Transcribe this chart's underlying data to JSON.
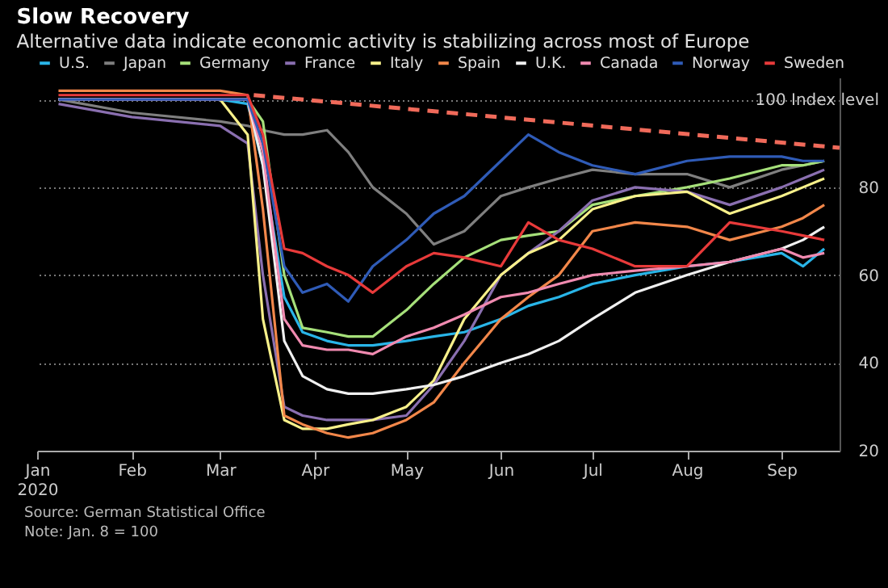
{
  "chart_data": {
    "type": "line",
    "title": "Slow Recovery",
    "subtitle": "Alternative data indicate economic activity is stabilizing across most of Europe",
    "annotations": [
      "Source: German Statistical Office",
      "Note: Jan. 8 = 100"
    ],
    "legend": "top left",
    "grid": "y",
    "line_style": "solid",
    "marker": "none",
    "xlim": [
      "2020-01-01",
      "2020-09-20"
    ],
    "xticks": [
      {
        "value": "2020-01-01",
        "label": "Jan\n2020"
      },
      {
        "value": "2020-02-01",
        "label": "Feb"
      },
      {
        "value": "2020-03-01",
        "label": "Mar"
      },
      {
        "value": "2020-04-01",
        "label": "Apr"
      },
      {
        "value": "2020-05-01",
        "label": "May"
      },
      {
        "value": "2020-06-01",
        "label": "Jun"
      },
      {
        "value": "2020-07-01",
        "label": "Jul"
      },
      {
        "value": "2020-08-01",
        "label": "Aug"
      },
      {
        "value": "2020-09-01",
        "label": "Sep"
      }
    ],
    "ylim": [
      20,
      105
    ],
    "yticks": [
      20,
      40,
      60,
      80,
      {
        "value": 100,
        "label": "100 Index level"
      }
    ],
    "x": [
      "2020-01-08",
      "2020-02-01",
      "2020-03-01",
      "2020-03-10",
      "2020-03-15",
      "2020-03-22",
      "2020-03-28",
      "2020-04-05",
      "2020-04-12",
      "2020-04-20",
      "2020-05-01",
      "2020-05-10",
      "2020-05-20",
      "2020-06-01",
      "2020-06-10",
      "2020-06-20",
      "2020-07-01",
      "2020-07-15",
      "2020-08-01",
      "2020-08-15",
      "2020-09-01",
      "2020-09-08",
      "2020-09-15"
    ],
    "series": [
      {
        "name": "U.S.",
        "color": "#29b5e8",
        "values": [
          100,
          100,
          100,
          99,
          85,
          55,
          47,
          45,
          44,
          44,
          45,
          46,
          47,
          50,
          53,
          55,
          58,
          60,
          62,
          63,
          65,
          62,
          66
        ]
      },
      {
        "name": "Japan",
        "color": "#7f7f7f",
        "values": [
          100,
          97,
          95,
          94,
          93,
          92,
          92,
          93,
          88,
          80,
          74,
          67,
          70,
          78,
          80,
          82,
          84,
          83,
          83,
          80,
          84,
          85,
          86
        ]
      },
      {
        "name": "Germany",
        "color": "#a6e07a",
        "values": [
          100,
          100,
          100,
          100,
          95,
          60,
          48,
          47,
          46,
          46,
          52,
          58,
          64,
          68,
          69,
          70,
          76,
          78,
          80,
          82,
          85,
          85,
          86
        ]
      },
      {
        "name": "France",
        "color": "#8a6fb0",
        "values": [
          99,
          96,
          94,
          90,
          60,
          30,
          28,
          27,
          27,
          27,
          28,
          35,
          45,
          60,
          65,
          70,
          77,
          80,
          79,
          76,
          80,
          82,
          84
        ]
      },
      {
        "name": "Italy",
        "color": "#f7f08a",
        "values": [
          100,
          100,
          100,
          92,
          50,
          27,
          25,
          25,
          26,
          27,
          30,
          36,
          50,
          60,
          65,
          68,
          75,
          78,
          79,
          74,
          78,
          80,
          82
        ]
      },
      {
        "name": "Spain",
        "color": "#f2874a",
        "values": [
          102,
          102,
          102,
          101,
          75,
          28,
          26,
          24,
          23,
          24,
          27,
          31,
          40,
          50,
          55,
          60,
          70,
          72,
          71,
          68,
          71,
          73,
          76
        ]
      },
      {
        "name": "U.K.",
        "color": "#f0f0f0",
        "values": [
          100,
          100,
          100,
          100,
          85,
          45,
          37,
          34,
          33,
          33,
          34,
          35,
          37,
          40,
          42,
          45,
          50,
          56,
          60,
          63,
          66,
          68,
          71
        ]
      },
      {
        "name": "Canada",
        "color": "#f08ab0",
        "values": [
          100,
          100,
          100,
          100,
          88,
          50,
          44,
          43,
          43,
          42,
          46,
          48,
          51,
          55,
          56,
          58,
          60,
          61,
          62,
          63,
          66,
          64,
          65
        ]
      },
      {
        "name": "Norway",
        "color": "#2f5bb7",
        "values": [
          100,
          100,
          100,
          100,
          90,
          62,
          56,
          58,
          54,
          62,
          68,
          74,
          78,
          86,
          92,
          88,
          85,
          83,
          86,
          87,
          87,
          86,
          86
        ]
      },
      {
        "name": "Sweden",
        "color": "#e83a3a",
        "values": [
          101,
          101,
          101,
          101,
          92,
          66,
          65,
          62,
          60,
          56,
          62,
          65,
          64,
          62,
          72,
          68,
          66,
          62,
          62,
          72,
          70,
          69,
          68
        ]
      },
      {
        "type": "line",
        "line_style": "dashed",
        "color": "#f06a5a",
        "x": [
          "2020-03-12",
          "2020-09-20"
        ],
        "values": [
          101,
          89
        ]
      }
    ]
  }
}
